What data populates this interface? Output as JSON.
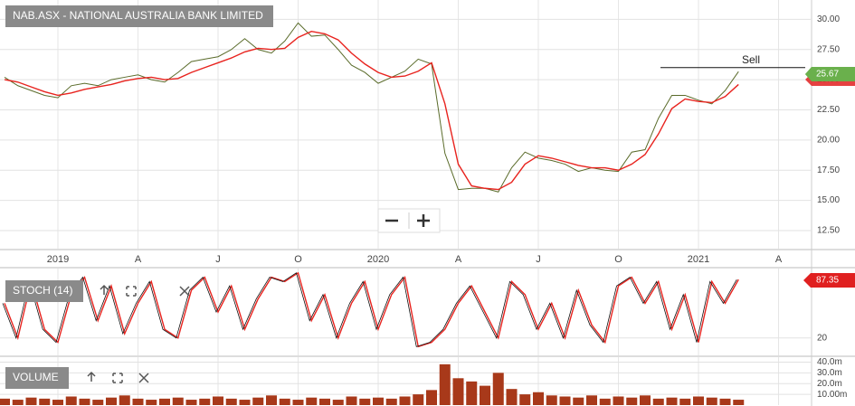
{
  "chart_data": [
    {
      "type": "line",
      "title": "NAB.ASX - NATIONAL AUSTRALIA BANK LIMITED",
      "categories": [
        null,
        null,
        null,
        null,
        "2019",
        null,
        null,
        null,
        null,
        null,
        "A",
        null,
        null,
        null,
        null,
        null,
        "J",
        null,
        null,
        null,
        null,
        null,
        "O",
        null,
        null,
        null,
        null,
        null,
        "2020",
        null,
        null,
        null,
        null,
        null,
        "A",
        null,
        null,
        null,
        null,
        null,
        "J",
        null,
        null,
        null,
        null,
        null,
        "O",
        null,
        null,
        null,
        null,
        null,
        "2021",
        null,
        null,
        null,
        null,
        null,
        "A",
        null
      ],
      "series": [
        {
          "color": "#5a6b2a",
          "values": [
            25.2,
            24.5,
            24.1,
            23.7,
            23.5,
            24.5,
            24.7,
            24.5,
            25.0,
            25.2,
            25.4,
            25.0,
            24.8,
            25.6,
            26.5,
            26.7,
            26.9,
            27.5,
            28.4,
            27.5,
            27.2,
            28.2,
            29.7,
            28.6,
            28.7,
            27.5,
            26.2,
            25.6,
            24.7,
            25.2,
            25.7,
            26.7,
            26.3,
            18.9,
            15.9,
            16.0,
            16.0,
            15.7,
            17.7,
            19.0,
            18.5,
            18.3,
            18.0,
            17.4,
            17.7,
            17.5,
            17.4,
            19.0,
            19.2,
            21.8,
            23.7,
            23.7,
            23.3,
            23.0,
            24.1,
            25.67,
            null,
            null,
            null,
            null
          ]
        },
        {
          "color": "#e8231e",
          "values": [
            25.0,
            24.8,
            24.4,
            24.0,
            23.7,
            23.9,
            24.2,
            24.4,
            24.6,
            24.9,
            25.1,
            25.2,
            25.0,
            25.1,
            25.6,
            26.0,
            26.4,
            26.8,
            27.3,
            27.6,
            27.5,
            27.6,
            28.5,
            29.0,
            28.8,
            28.3,
            27.2,
            26.3,
            25.6,
            25.2,
            25.3,
            25.7,
            26.4,
            23.0,
            18.0,
            16.2,
            16.0,
            15.9,
            16.5,
            18.0,
            18.7,
            18.5,
            18.2,
            17.9,
            17.7,
            17.7,
            17.5,
            18.0,
            18.8,
            20.5,
            22.6,
            23.4,
            23.2,
            23.1,
            23.6,
            24.6,
            null,
            null,
            null,
            null
          ]
        }
      ],
      "ylim": [
        11,
        31.6
      ],
      "yticks": [
        {
          "value": 12.5,
          "label": "12.50"
        },
        {
          "value": 15,
          "label": "15.00"
        },
        {
          "value": 17.5,
          "label": "17.50"
        },
        {
          "value": 20,
          "label": "20.00"
        },
        {
          "value": 22.5,
          "label": "22.50"
        },
        {
          "value": 25,
          "label": "25.00"
        },
        {
          "value": 27.5,
          "label": "27.50"
        },
        {
          "value": 30,
          "label": "30.00"
        }
      ],
      "annotations": [
        {
          "text": "Sell",
          "value": 26.0
        }
      ],
      "grid": true
    },
    {
      "type": "line",
      "title": "STOCH (14)",
      "series": [
        {
          "color": "#e8231e",
          "values": [
            60,
            20,
            85,
            30,
            15,
            70,
            90,
            40,
            80,
            25,
            60,
            85,
            30,
            20,
            75,
            90,
            50,
            80,
            30,
            65,
            90,
            85,
            95,
            40,
            70,
            20,
            60,
            85,
            30,
            70,
            90,
            10,
            15,
            30,
            60,
            80,
            50,
            20,
            85,
            70,
            30,
            60,
            20,
            75,
            35,
            15,
            80,
            90,
            60,
            85,
            30,
            70,
            15,
            85,
            60,
            87.35,
            null,
            null,
            null,
            null
          ]
        }
      ],
      "ylim": [
        0,
        100
      ],
      "yticks": [
        20
      ],
      "grid": true
    },
    {
      "type": "bar",
      "title": "VOLUME",
      "color": "#a8391a",
      "values": [
        6,
        5,
        7,
        6,
        5,
        8,
        6,
        5,
        7,
        9,
        6,
        5,
        6,
        7,
        5,
        6,
        8,
        6,
        5,
        7,
        9,
        6,
        5,
        7,
        6,
        5,
        8,
        6,
        7,
        6,
        8,
        10,
        14,
        38,
        25,
        22,
        18,
        30,
        15,
        10,
        12,
        9,
        8,
        7,
        9,
        6,
        8,
        7,
        9,
        6,
        7,
        6,
        8,
        7,
        6,
        5,
        null,
        null,
        null,
        null
      ],
      "ylim": [
        0,
        44.6
      ],
      "yticks": [
        {
          "value": 40,
          "label": "40.0m"
        },
        {
          "value": 30,
          "label": "30.0m"
        },
        {
          "value": 20,
          "label": "20.0m"
        },
        {
          "value": 10,
          "label": "10.00m"
        }
      ],
      "grid": true
    }
  ]
}
